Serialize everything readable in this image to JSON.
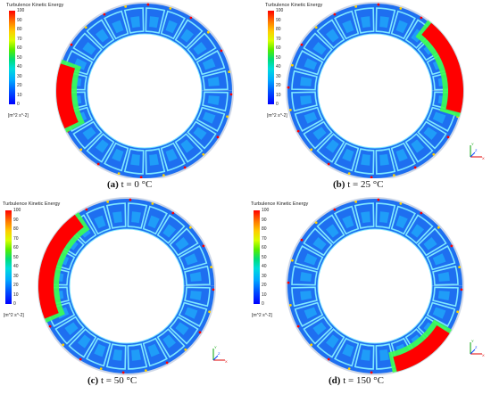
{
  "legend": {
    "title": "Turbulence Kinetic Energy",
    "ticks": [
      "100",
      "90",
      "80",
      "70",
      "60",
      "50",
      "40",
      "30",
      "20",
      "10",
      "0"
    ],
    "unit": "[m^2 s^-2]"
  },
  "colors": {
    "blade_fill": "#1e6ff0",
    "blade_highlight": "#21c2ff",
    "blade_border": "#7fe8ff",
    "ring_outer": "#cfd8e8",
    "hot": "#ff0000",
    "warm": "#ffd000",
    "mid": "#3cff50"
  },
  "panels": [
    {
      "id": "a",
      "letter": "(a)",
      "label": "t = 0 °C",
      "hot_region": "left",
      "has_axes": false
    },
    {
      "id": "b",
      "letter": "(b)",
      "label": "t = 25 °C",
      "hot_region": "right",
      "has_axes": true
    },
    {
      "id": "c",
      "letter": "(c)",
      "label": "t = 50 °C",
      "hot_region": "upper-left",
      "has_axes": true
    },
    {
      "id": "d",
      "letter": "(d)",
      "label": "t = 150 °C",
      "hot_region": "bottom-right",
      "has_axes": true
    }
  ],
  "axis_labels": {
    "x": "X",
    "y": "Y",
    "z": "Z"
  }
}
